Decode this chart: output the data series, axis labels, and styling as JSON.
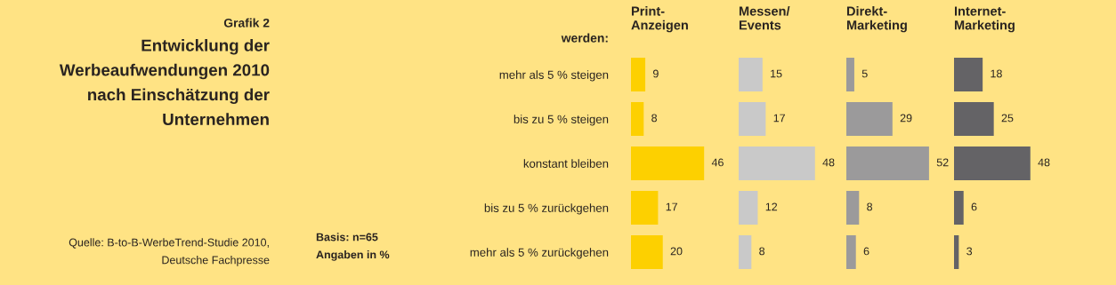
{
  "chart_data": [
    {
      "type": "other",
      "subtitle": "Grafik 2",
      "title": "Entwicklung der\nWerbeaufwendungen 2010\nnach Einschätzung der\nUnternehmen",
      "annotations": [
        "Quelle: B-to-B-WerbeTrend-Studie 2010,\nDeutsche Fachpresse",
        "Basis: n=65\nAngaben in %"
      ]
    },
    {
      "type": "bar",
      "orientation": "horizontal",
      "title": "Print-\nAnzeigen",
      "ylabel": "werden:",
      "categories": [
        "mehr als 5 % steigen",
        "bis zu 5 % steigen",
        "konstant bleiben",
        "bis zu 5 % zurückgehen",
        "mehr als 5 % zurückgehen"
      ],
      "values": [
        9,
        8,
        46,
        17,
        20
      ],
      "color": "#fdd000",
      "data_labels": true,
      "tick_labels": "y"
    },
    {
      "type": "bar",
      "orientation": "horizontal",
      "title": "Messen/\nEvents",
      "values": [
        15,
        17,
        48,
        12,
        8
      ],
      "color": "#c9c9c9",
      "data_labels": true
    },
    {
      "type": "bar",
      "orientation": "horizontal",
      "title": "Direkt-\nMarketing",
      "values": [
        5,
        29,
        52,
        8,
        6
      ],
      "color": "#9b9a9b",
      "data_labels": true
    },
    {
      "type": "bar",
      "orientation": "horizontal",
      "title": "Internet-\nMarketing",
      "values": [
        18,
        25,
        48,
        6,
        3
      ],
      "color": "#646366",
      "data_labels": true
    }
  ]
}
